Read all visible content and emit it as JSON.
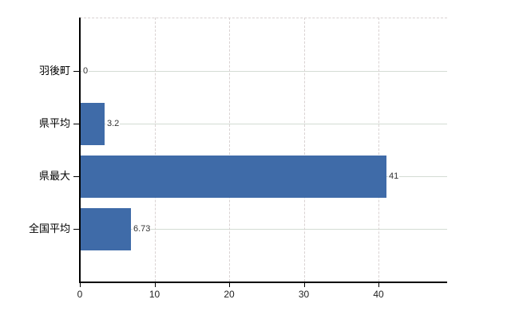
{
  "chart_data": {
    "type": "bar",
    "orientation": "horizontal",
    "title": "",
    "xlabel": "",
    "ylabel": "",
    "categories": [
      "羽後町",
      "県平均",
      "県最大",
      "全国平均"
    ],
    "values": [
      0,
      3.2,
      41,
      6.73
    ],
    "value_labels": [
      "0",
      "3.2",
      "41",
      "6.73"
    ],
    "x_tick_labels": [
      "0",
      "10",
      "20",
      "30",
      "40"
    ],
    "x_tick_values": [
      0,
      10,
      20,
      30,
      40
    ],
    "xlim": [
      0,
      49.2
    ],
    "grid": true,
    "legend_position": "none",
    "bar_color": "#3f6ba8",
    "axis_color": "#000000",
    "hgrid_color": "#d4dcd4",
    "vgrid_color": "#d9d2d2",
    "background_color": "#ffffff",
    "label_color": "#333333"
  }
}
